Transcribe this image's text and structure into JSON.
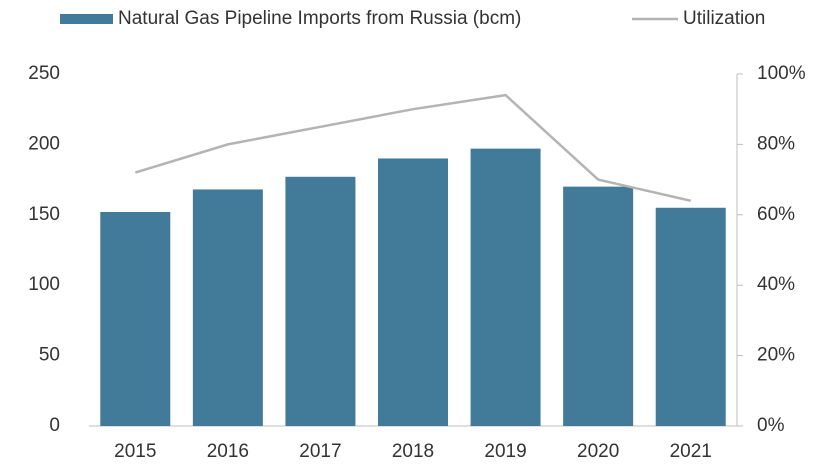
{
  "chart_data": {
    "type": "bar_line",
    "categories": [
      "2015",
      "2016",
      "2017",
      "2018",
      "2019",
      "2020",
      "2021"
    ],
    "series": [
      {
        "name": "Natural Gas Pipeline Imports from Russia (bcm)",
        "type": "bar",
        "color": "#427a9a",
        "values": [
          152,
          168,
          177,
          190,
          197,
          170,
          155
        ]
      },
      {
        "name": "Utilization",
        "type": "line",
        "axis": "y2",
        "color": "#b4b4b4",
        "values": [
          72,
          80,
          85,
          90,
          94,
          70,
          64
        ]
      }
    ],
    "ylim": [
      0,
      250
    ],
    "yticks": [
      0,
      50,
      100,
      150,
      200,
      250
    ],
    "y2lim": [
      0,
      100
    ],
    "y2ticks": [
      {
        "value": 0,
        "label": "0%"
      },
      {
        "value": 20,
        "label": "20%"
      },
      {
        "value": 40,
        "label": "40%"
      },
      {
        "value": 60,
        "label": "60%"
      },
      {
        "value": 80,
        "label": "80%"
      },
      {
        "value": 100,
        "label": "100%"
      }
    ],
    "legend": "top"
  }
}
